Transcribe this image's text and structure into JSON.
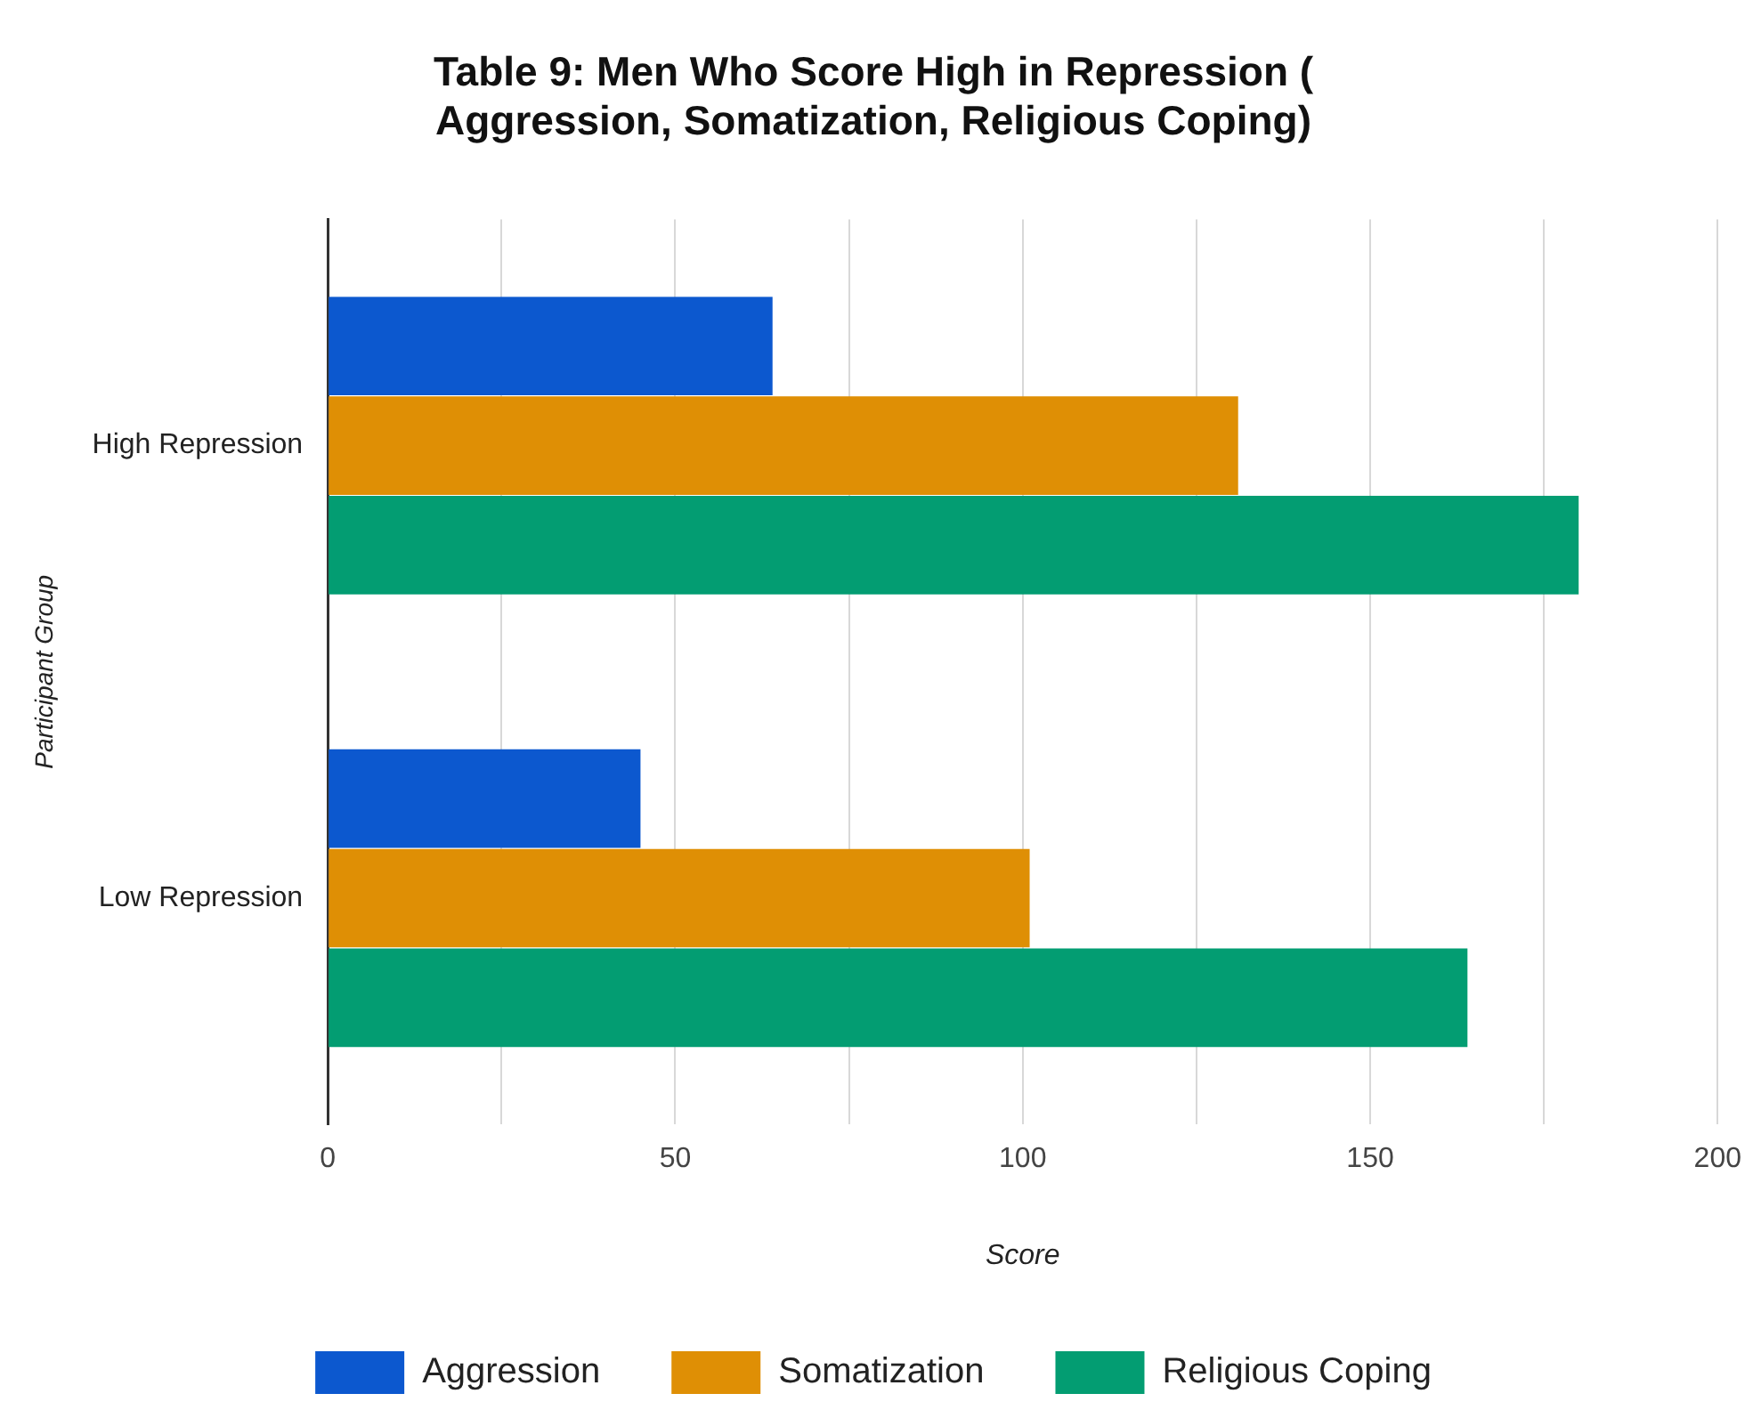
{
  "chart_data": {
    "type": "bar",
    "orientation": "horizontal",
    "title": "Table 9: Men Who Score High in Repression ( Aggression, Somatization, Religious Coping)",
    "xlabel": "Score",
    "ylabel": "Participant Group",
    "categories": [
      "High Repression",
      "Low Repression"
    ],
    "series": [
      {
        "name": "Aggression",
        "color": "#0c58cf",
        "values": [
          64,
          45
        ]
      },
      {
        "name": "Somatization",
        "color": "#df8f05",
        "values": [
          131,
          101
        ]
      },
      {
        "name": "Religious Coping",
        "color": "#039d72",
        "values": [
          180,
          164
        ]
      }
    ],
    "xlim": [
      0,
      200
    ],
    "xticks": [
      0,
      {
        "value": 25,
        "label": null
      },
      50,
      {
        "value": 75,
        "label": null
      },
      100,
      {
        "value": 125,
        "label": null
      },
      150,
      {
        "value": 175,
        "label": null
      },
      200
    ],
    "grid": "x",
    "legend": "bottom"
  }
}
